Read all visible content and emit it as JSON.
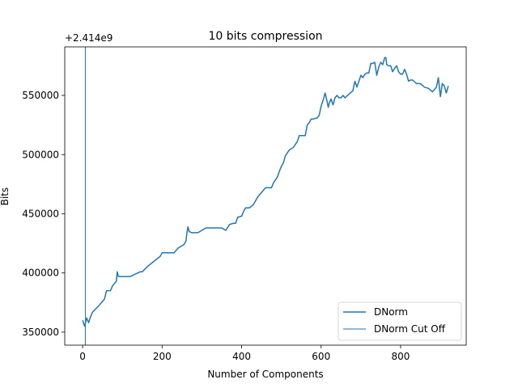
{
  "chart_data": {
    "type": "line",
    "title": "10 bits compression",
    "xlabel": "Number of Components",
    "ylabel": "Bits",
    "offset_label": "+2.414e9",
    "xlim": [
      -45,
      965
    ],
    "ylim": [
      339000,
      591000
    ],
    "xticks": [
      0,
      200,
      400,
      600,
      800
    ],
    "yticks": [
      350000,
      400000,
      450000,
      500000,
      550000
    ],
    "ytick_labels": [
      "350000",
      "400000",
      "450000",
      "500000",
      "550000"
    ],
    "grid": false,
    "legend": {
      "position": "lower-right",
      "entries": [
        "DNorm",
        "DNorm Cut Off"
      ]
    },
    "colors": {
      "series": "#1f77b4"
    },
    "cutoff": {
      "name": "DNorm Cut Off",
      "x": 7
    },
    "series": [
      {
        "name": "DNorm",
        "x": [
          0,
          5,
          10,
          15,
          20,
          25,
          40,
          55,
          60,
          70,
          75,
          85,
          87,
          90,
          120,
          145,
          150,
          165,
          180,
          195,
          200,
          230,
          240,
          255,
          260,
          262,
          265,
          268,
          275,
          290,
          310,
          330,
          340,
          350,
          360,
          370,
          380,
          385,
          390,
          400,
          405,
          410,
          420,
          430,
          440,
          450,
          460,
          470,
          475,
          480,
          490,
          495,
          500,
          505,
          510,
          520,
          525,
          530,
          540,
          545,
          550,
          560,
          565,
          570,
          575,
          580,
          590,
          595,
          600,
          605,
          610,
          615,
          618,
          620,
          625,
          630,
          635,
          640,
          645,
          650,
          655,
          660,
          670,
          680,
          685,
          690,
          700,
          705,
          710,
          715,
          720,
          725,
          730,
          735,
          740,
          745,
          750,
          755,
          760,
          763,
          765,
          770,
          775,
          780,
          785,
          790,
          795,
          800,
          805,
          810,
          815,
          820,
          825,
          830,
          840,
          850,
          860,
          870,
          880,
          890,
          895,
          900,
          905,
          910,
          915,
          920
        ],
        "values": [
          360000,
          355000,
          362000,
          358000,
          363000,
          367000,
          372000,
          378000,
          385000,
          385000,
          389000,
          393000,
          401000,
          397000,
          397000,
          401000,
          401000,
          406000,
          410000,
          414000,
          417000,
          417000,
          421000,
          424000,
          427000,
          433000,
          439000,
          435000,
          434000,
          434000,
          438000,
          438000,
          438000,
          438000,
          436000,
          441000,
          442000,
          442000,
          447000,
          448000,
          452000,
          455000,
          455000,
          458000,
          464000,
          468000,
          472000,
          472000,
          472000,
          476000,
          481000,
          486000,
          490000,
          493000,
          499000,
          504000,
          505000,
          506000,
          511000,
          516000,
          516000,
          516000,
          525000,
          527000,
          530000,
          530000,
          531000,
          533000,
          541000,
          546000,
          552000,
          545000,
          540000,
          543000,
          547000,
          542000,
          548000,
          550000,
          548000,
          548000,
          550000,
          548000,
          551000,
          554000,
          562000,
          557000,
          567000,
          565000,
          568000,
          569000,
          569000,
          577000,
          577000,
          578000,
          567000,
          574000,
          578000,
          576000,
          582000,
          582000,
          576000,
          575000,
          575000,
          570000,
          573000,
          575000,
          570000,
          568000,
          568000,
          572000,
          568000,
          562000,
          563000,
          563000,
          560000,
          560000,
          557000,
          556000,
          553000,
          557000,
          565000,
          549000,
          560000,
          558000,
          552000,
          558000
        ]
      }
    ]
  }
}
